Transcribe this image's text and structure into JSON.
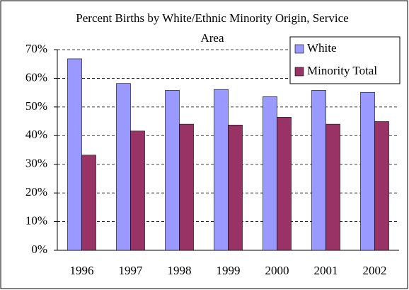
{
  "chart_data": {
    "type": "bar",
    "title": "Percent Births by White/Ethnic Minority Origin, Service Area",
    "categories": [
      "1996",
      "1997",
      "1998",
      "1999",
      "2000",
      "2001",
      "2002"
    ],
    "series": [
      {
        "name": "White",
        "color": "#9999ff",
        "values": [
          66.8,
          58.2,
          55.8,
          56.1,
          53.6,
          55.8,
          55.1
        ]
      },
      {
        "name": "Minority Total",
        "color": "#993366",
        "values": [
          33.2,
          41.6,
          44.0,
          43.7,
          46.4,
          44.0,
          44.9
        ]
      }
    ],
    "ylim": [
      0,
      70
    ],
    "yticks": [
      {
        "value": 0,
        "label": "0%"
      },
      {
        "value": 10,
        "label": "10%"
      },
      {
        "value": 20,
        "label": "20%"
      },
      {
        "value": 30,
        "label": "30%"
      },
      {
        "value": 40,
        "label": "40%"
      },
      {
        "value": 50,
        "label": "50%"
      },
      {
        "value": 60,
        "label": "60%"
      },
      {
        "value": 70,
        "label": "70%"
      }
    ],
    "grid": true,
    "legend": "top-right"
  }
}
